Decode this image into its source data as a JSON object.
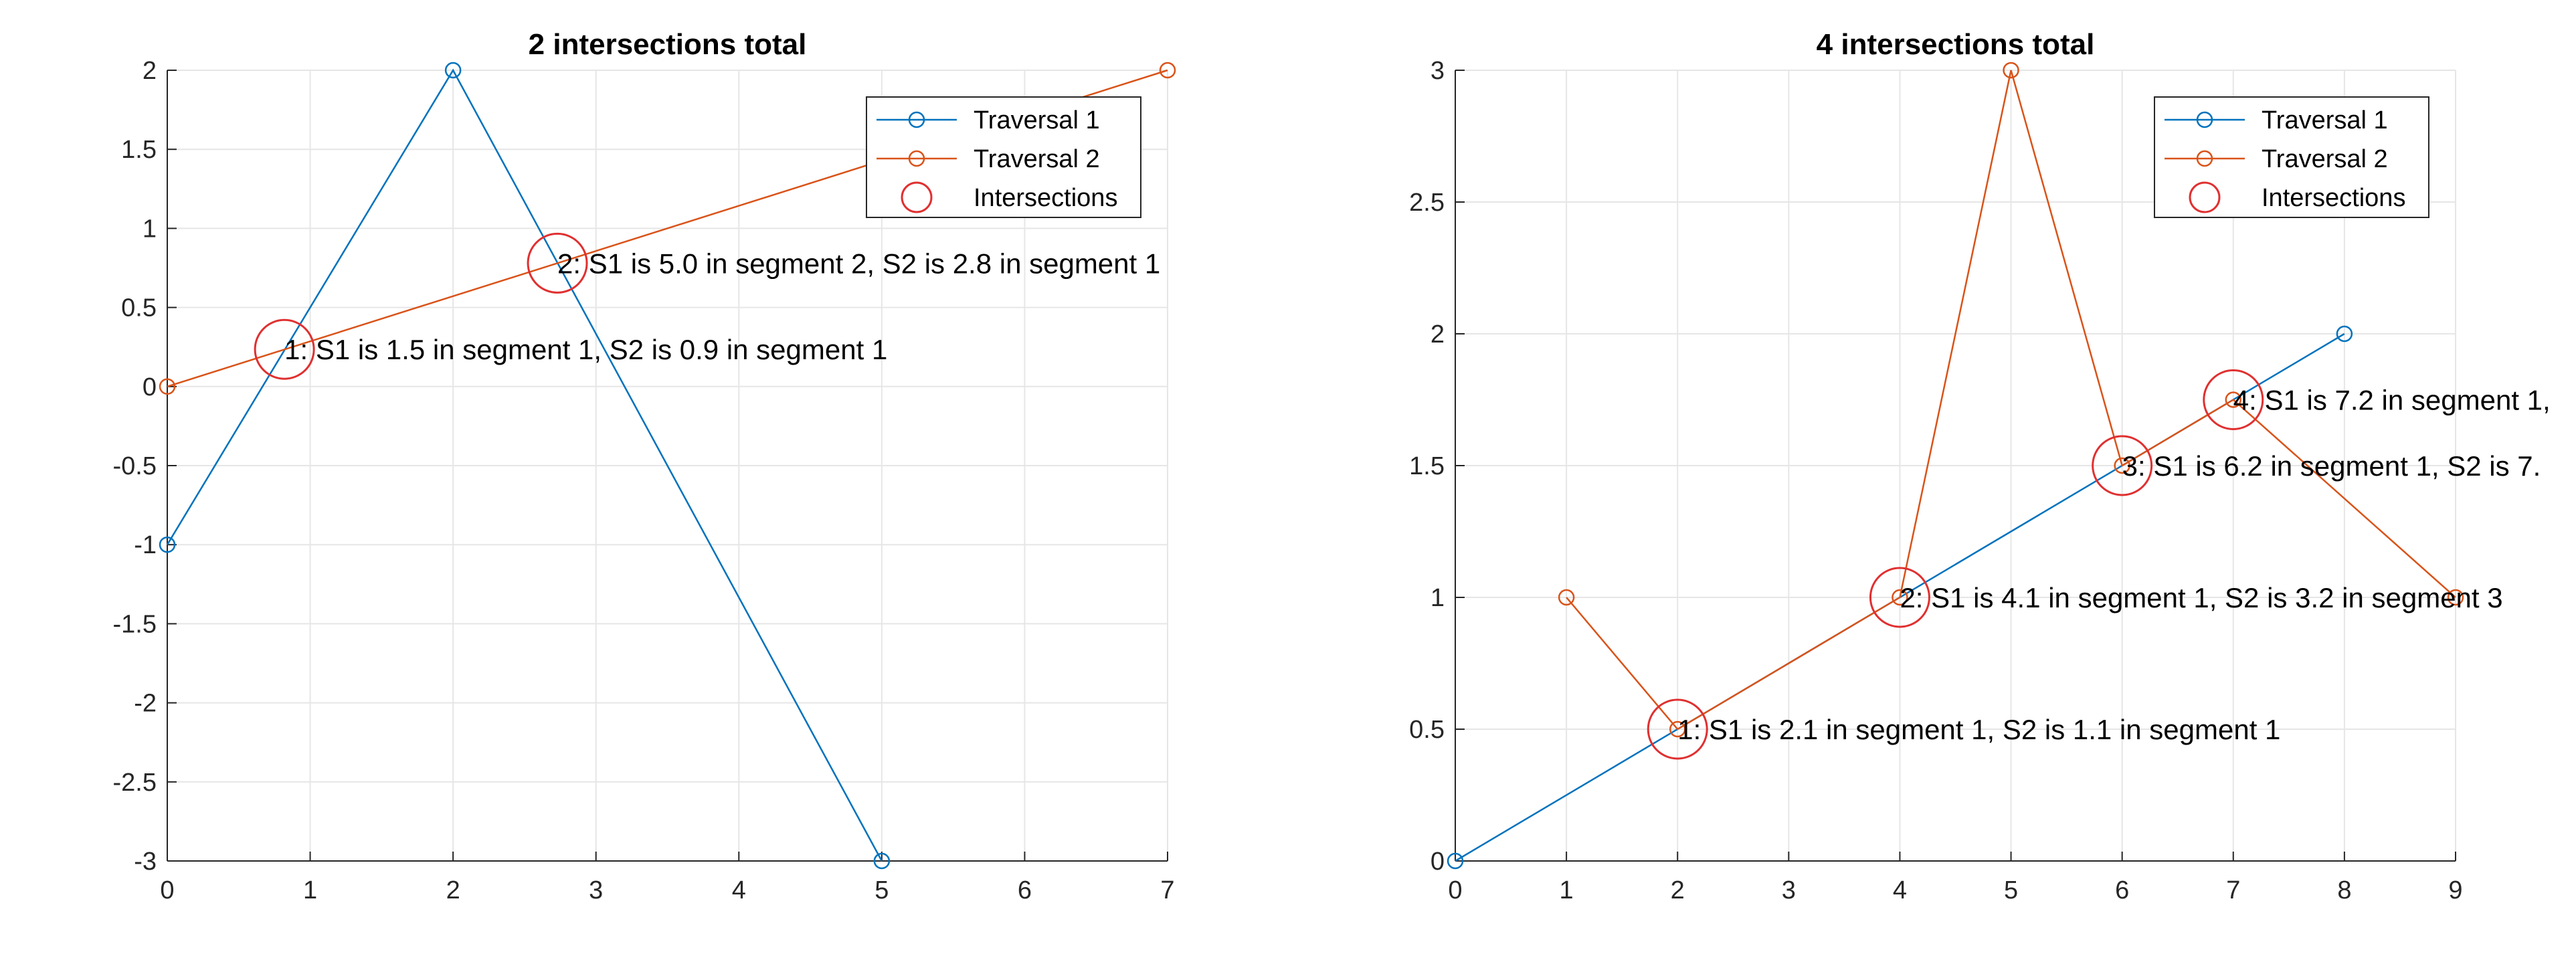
{
  "chart_data": [
    {
      "type": "line",
      "title": "2 intersections total",
      "xlabel": "",
      "ylabel": "",
      "xlim": [
        0,
        7
      ],
      "ylim": [
        -3,
        2
      ],
      "xticks": [
        0,
        1,
        2,
        3,
        4,
        5,
        6,
        7
      ],
      "xtick_labels": [
        "0",
        "1",
        "2",
        "3",
        "4",
        "5",
        "6",
        "7"
      ],
      "yticks": [
        -3,
        -2.5,
        -2,
        -1.5,
        -1,
        -0.5,
        0,
        0.5,
        1,
        1.5,
        2
      ],
      "ytick_labels": [
        "-3",
        "-2.5",
        "-2",
        "-1.5",
        "-1",
        "-0.5",
        "0",
        "0.5",
        "1",
        "1.5",
        "2"
      ],
      "grid": true,
      "legend_position": "top-right",
      "series": [
        {
          "name": "Traversal 1",
          "color": "#0072BD",
          "marker": "circle",
          "x": [
            0,
            2,
            5
          ],
          "y": [
            -1,
            2,
            -3
          ]
        },
        {
          "name": "Traversal 2",
          "color": "#D95319",
          "marker": "circle",
          "x": [
            0,
            7
          ],
          "y": [
            0,
            2
          ]
        }
      ],
      "intersections": {
        "name": "Intersections",
        "color": "#E03030",
        "points": [
          {
            "x": 0.82,
            "y": 0.235,
            "label": "1: S1 is 1.5 in segment 1, S2 is 0.9 in segment 1"
          },
          {
            "x": 2.73,
            "y": 0.78,
            "label": "2: S1 is 5.0 in segment 2, S2 is 2.8 in segment 1"
          }
        ]
      }
    },
    {
      "type": "line",
      "title": "4 intersections total",
      "xlabel": "",
      "ylabel": "",
      "xlim": [
        0,
        9
      ],
      "ylim": [
        0,
        3
      ],
      "xticks": [
        0,
        1,
        2,
        3,
        4,
        5,
        6,
        7,
        8,
        9
      ],
      "xtick_labels": [
        "0",
        "1",
        "2",
        "3",
        "4",
        "5",
        "6",
        "7",
        "8",
        "9"
      ],
      "yticks": [
        0,
        0.5,
        1,
        1.5,
        2,
        2.5,
        3
      ],
      "ytick_labels": [
        "0",
        "0.5",
        "1",
        "1.5",
        "2",
        "2.5",
        "3"
      ],
      "grid": true,
      "legend_position": "top-right",
      "series": [
        {
          "name": "Traversal 1",
          "color": "#0072BD",
          "marker": "circle",
          "x": [
            0,
            8
          ],
          "y": [
            0,
            2
          ]
        },
        {
          "name": "Traversal 2",
          "color": "#D95319",
          "marker": "circle",
          "x": [
            1,
            2,
            4,
            5,
            6,
            7,
            9
          ],
          "y": [
            1,
            0.5,
            1,
            3,
            1.5,
            1.75,
            1
          ]
        }
      ],
      "intersections": {
        "name": "Intersections",
        "color": "#E03030",
        "points": [
          {
            "x": 2,
            "y": 0.5,
            "label": "1: S1 is 2.1 in segment 1, S2 is 1.1 in segment 1"
          },
          {
            "x": 4,
            "y": 1,
            "label": "2: S1 is 4.1 in segment 1, S2 is 3.2 in segment 3"
          },
          {
            "x": 6,
            "y": 1.5,
            "label": "3: S1 is 6.2 in segment 1, S2 is 7."
          },
          {
            "x": 7,
            "y": 1.75,
            "label": "4: S1 is 7.2 in segment 1,"
          }
        ]
      }
    }
  ]
}
